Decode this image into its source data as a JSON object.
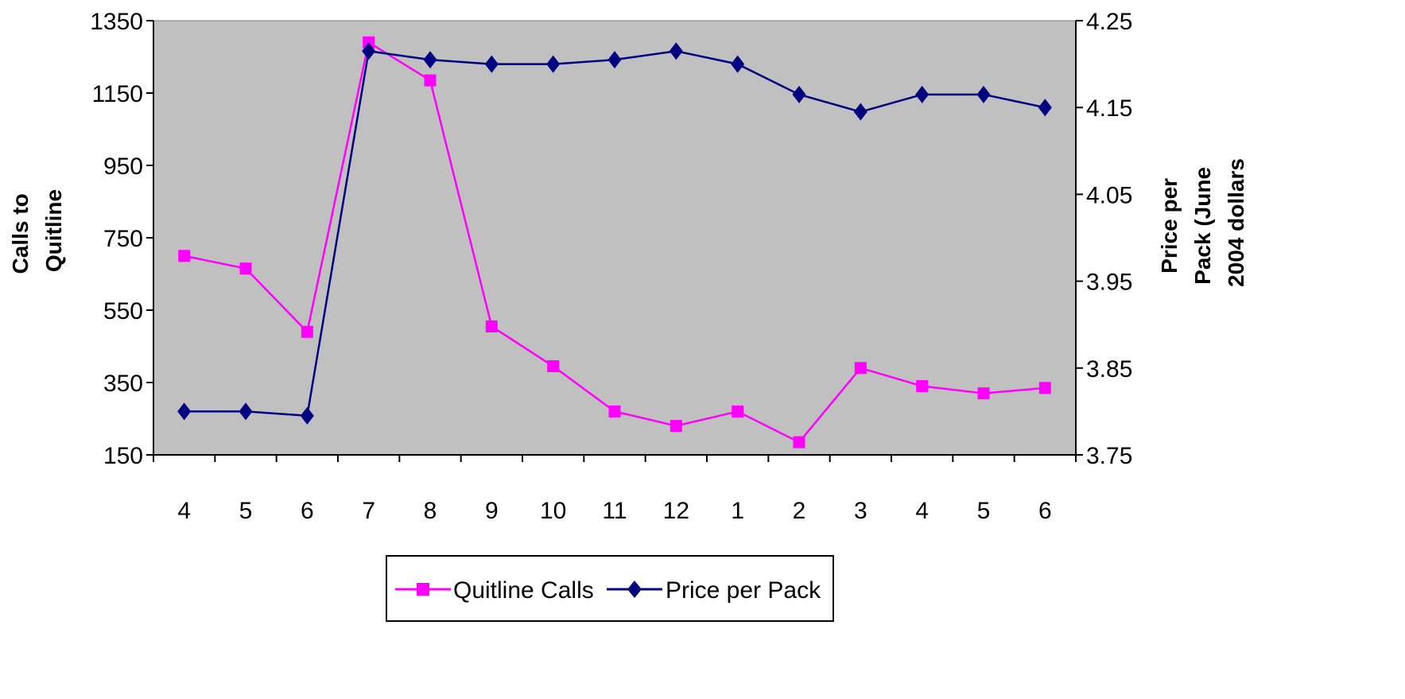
{
  "chart_data": {
    "type": "line",
    "categories": [
      "4",
      "5",
      "6",
      "7",
      "8",
      "9",
      "10",
      "11",
      "12",
      "1",
      "2",
      "3",
      "4",
      "5",
      "6"
    ],
    "series": [
      {
        "name": "Quitline Calls",
        "axis": "left",
        "color": "#FF00FF",
        "marker": "square",
        "values": [
          700,
          665,
          490,
          1290,
          1185,
          505,
          395,
          270,
          230,
          270,
          185,
          390,
          340,
          320,
          335
        ]
      },
      {
        "name": "Price per Pack",
        "axis": "right",
        "color": "#000080",
        "marker": "diamond",
        "values": [
          3.8,
          3.8,
          3.795,
          4.215,
          4.205,
          4.2,
          4.2,
          4.205,
          4.215,
          4.2,
          4.165,
          4.145,
          4.165,
          4.165,
          4.15
        ]
      }
    ],
    "y_left": {
      "label_lines": [
        "Calls to",
        "Quitline"
      ],
      "ylim": [
        150,
        1350
      ],
      "ticks": [
        150,
        350,
        550,
        750,
        950,
        1150,
        1350
      ],
      "tick_labels": [
        "150",
        "350",
        "550",
        "750",
        "950",
        "1150",
        "1350"
      ]
    },
    "y_right": {
      "label_lines": [
        "Price per",
        "Pack (June",
        "2004 dollars"
      ],
      "ylim": [
        3.75,
        4.25
      ],
      "ticks": [
        3.75,
        3.85,
        3.95,
        4.05,
        4.15,
        4.25
      ],
      "tick_labels": [
        "3.75",
        "3.85",
        "3.95",
        "4.05",
        "4.15",
        "4.25"
      ]
    },
    "plot_background": "#C0C0C0",
    "grid": false,
    "legend": {
      "placement": "bottom-center",
      "entries": [
        "Quitline Calls",
        "Price per Pack"
      ]
    }
  }
}
